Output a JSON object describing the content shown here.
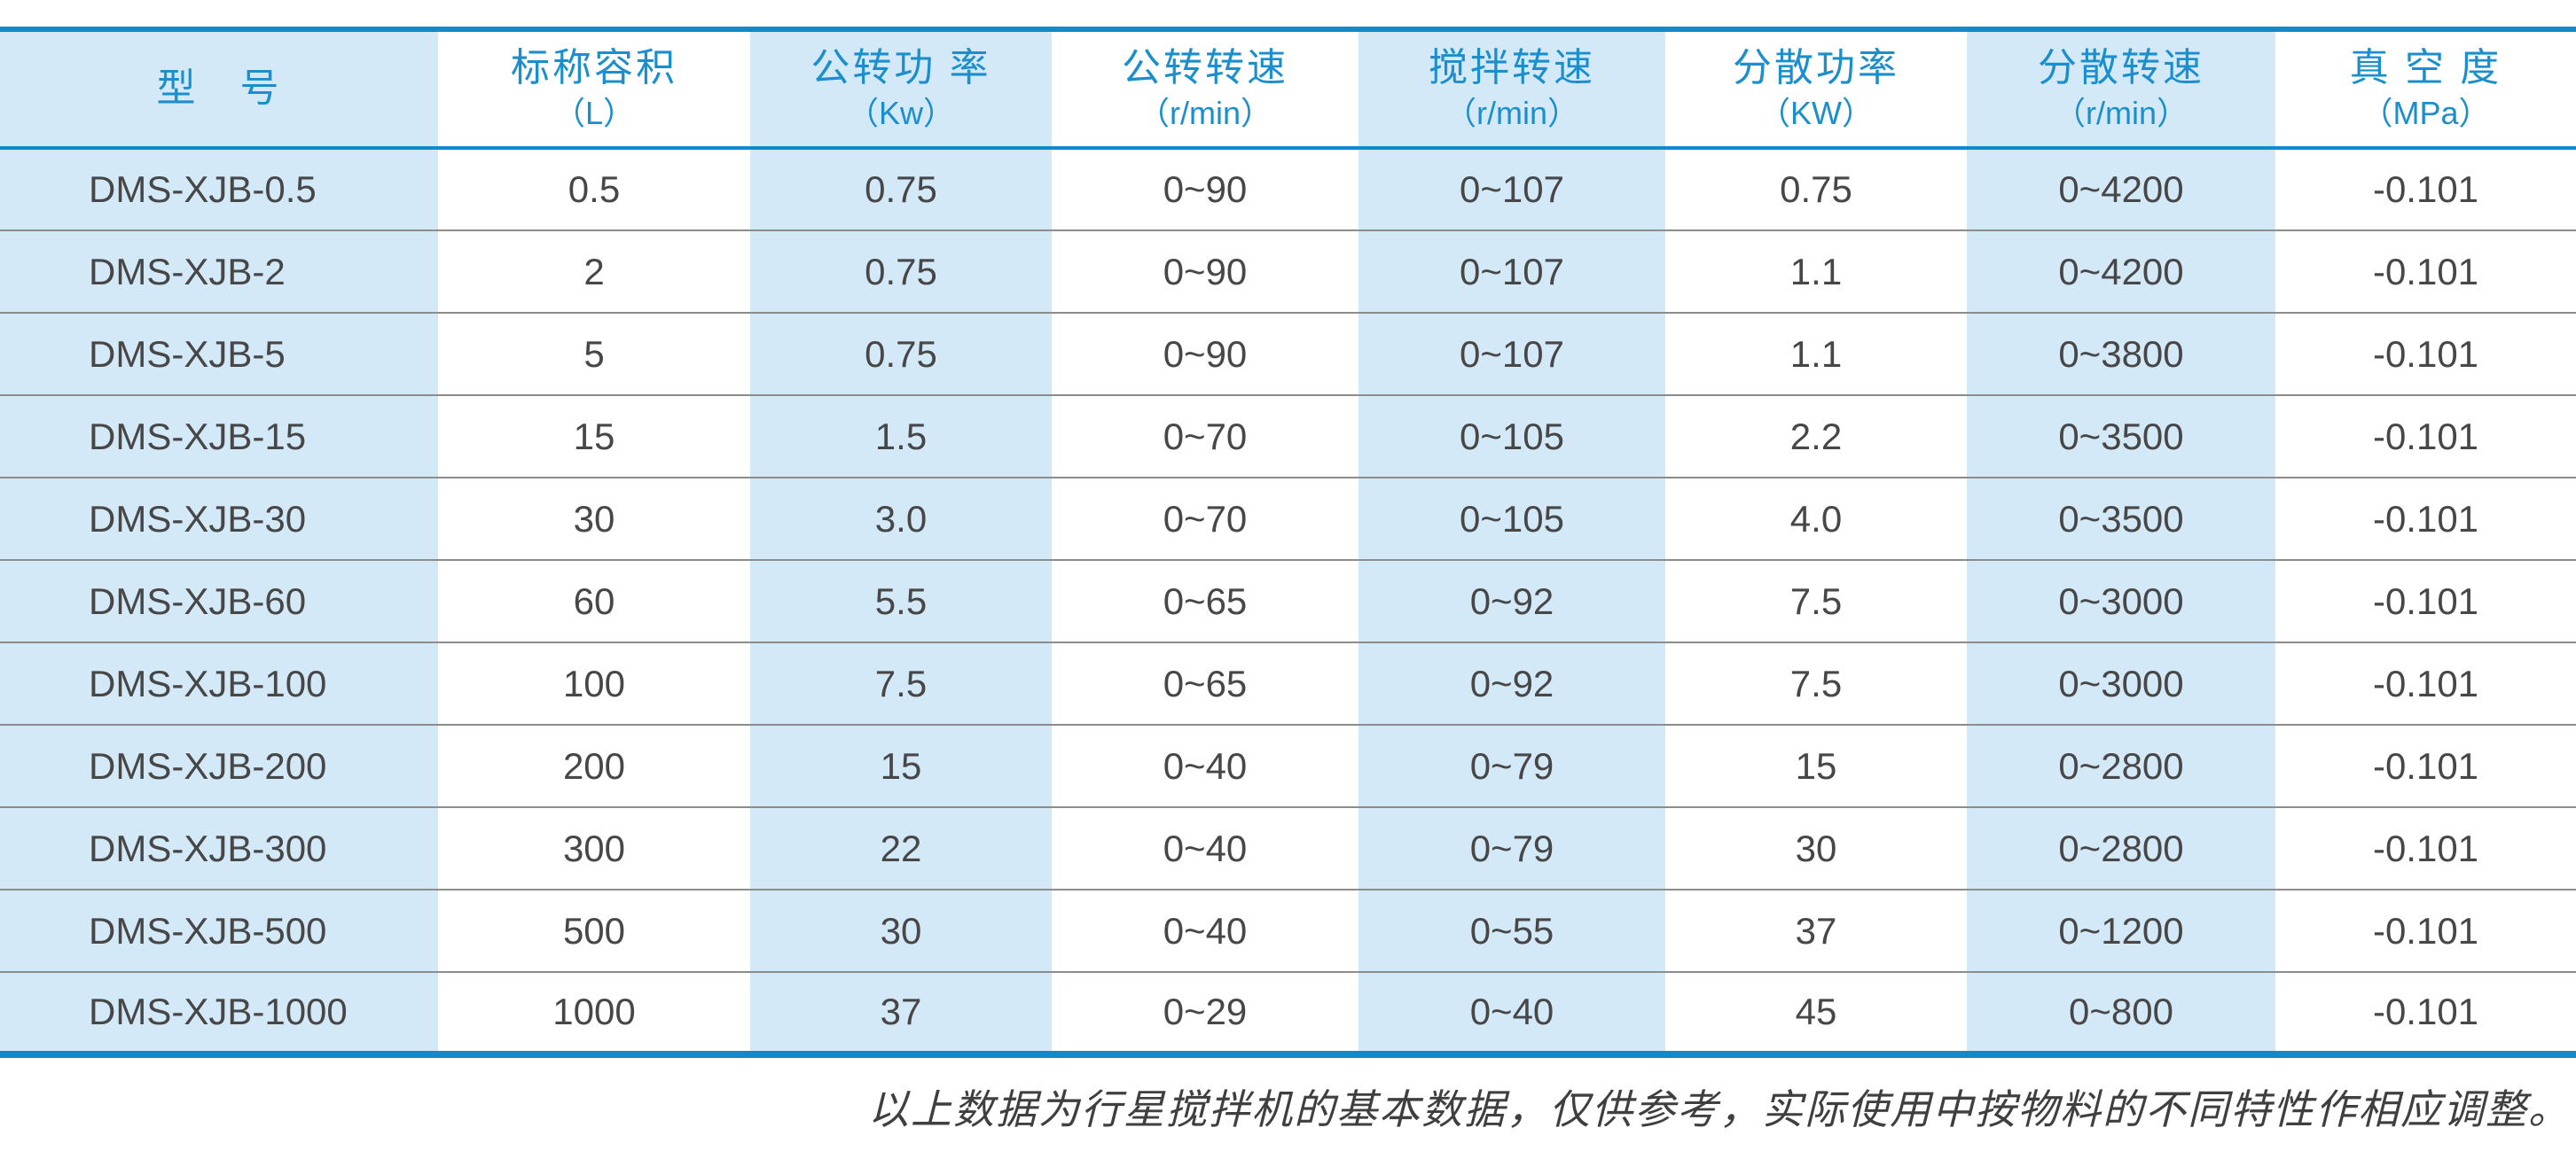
{
  "colors": {
    "accent_blue": "#1389c9",
    "header_text_blue": "#1b8fce",
    "stripe_light_blue": "#d4e9f8",
    "row_separator_gray": "#8c8c8c",
    "data_text": "#474747"
  },
  "table": {
    "columns": [
      {
        "title": "型　号",
        "unit": ""
      },
      {
        "title": "标称容积",
        "unit": "（L）"
      },
      {
        "title": "公转功 率",
        "unit": "（Kw）"
      },
      {
        "title": "公转转速",
        "unit": "（r/min）"
      },
      {
        "title": "搅拌转速",
        "unit": "（r/min）"
      },
      {
        "title": "分散功率",
        "unit": "（KW）"
      },
      {
        "title": "分散转速",
        "unit": "（r/min）"
      },
      {
        "title": "真 空 度",
        "unit": "（MPa）"
      }
    ],
    "rows": [
      [
        "DMS-XJB-0.5",
        "0.5",
        "0.75",
        "0~90",
        "0~107",
        "0.75",
        "0~4200",
        "-0.101"
      ],
      [
        "DMS-XJB-2",
        "2",
        "0.75",
        "0~90",
        "0~107",
        "1.1",
        "0~4200",
        "-0.101"
      ],
      [
        "DMS-XJB-5",
        "5",
        "0.75",
        "0~90",
        "0~107",
        "1.1",
        "0~3800",
        "-0.101"
      ],
      [
        "DMS-XJB-15",
        "15",
        "1.5",
        "0~70",
        "0~105",
        "2.2",
        "0~3500",
        "-0.101"
      ],
      [
        "DMS-XJB-30",
        "30",
        "3.0",
        "0~70",
        "0~105",
        "4.0",
        "0~3500",
        "-0.101"
      ],
      [
        "DMS-XJB-60",
        "60",
        "5.5",
        "0~65",
        "0~92",
        "7.5",
        "0~3000",
        "-0.101"
      ],
      [
        "DMS-XJB-100",
        "100",
        "7.5",
        "0~65",
        "0~92",
        "7.5",
        "0~3000",
        "-0.101"
      ],
      [
        "DMS-XJB-200",
        "200",
        "15",
        "0~40",
        "0~79",
        "15",
        "0~2800",
        "-0.101"
      ],
      [
        "DMS-XJB-300",
        "300",
        "22",
        "0~40",
        "0~79",
        "30",
        "0~2800",
        "-0.101"
      ],
      [
        "DMS-XJB-500",
        "500",
        "30",
        "0~40",
        "0~55",
        "37",
        "0~1200",
        "-0.101"
      ],
      [
        "DMS-XJB-1000",
        "1000",
        "37",
        "0~29",
        "0~40",
        "45",
        "0~800",
        "-0.101"
      ]
    ]
  },
  "footnote": "以上数据为行星搅拌机的基本数据，仅供参考，实际使用中按物料的不同特性作相应调整。"
}
